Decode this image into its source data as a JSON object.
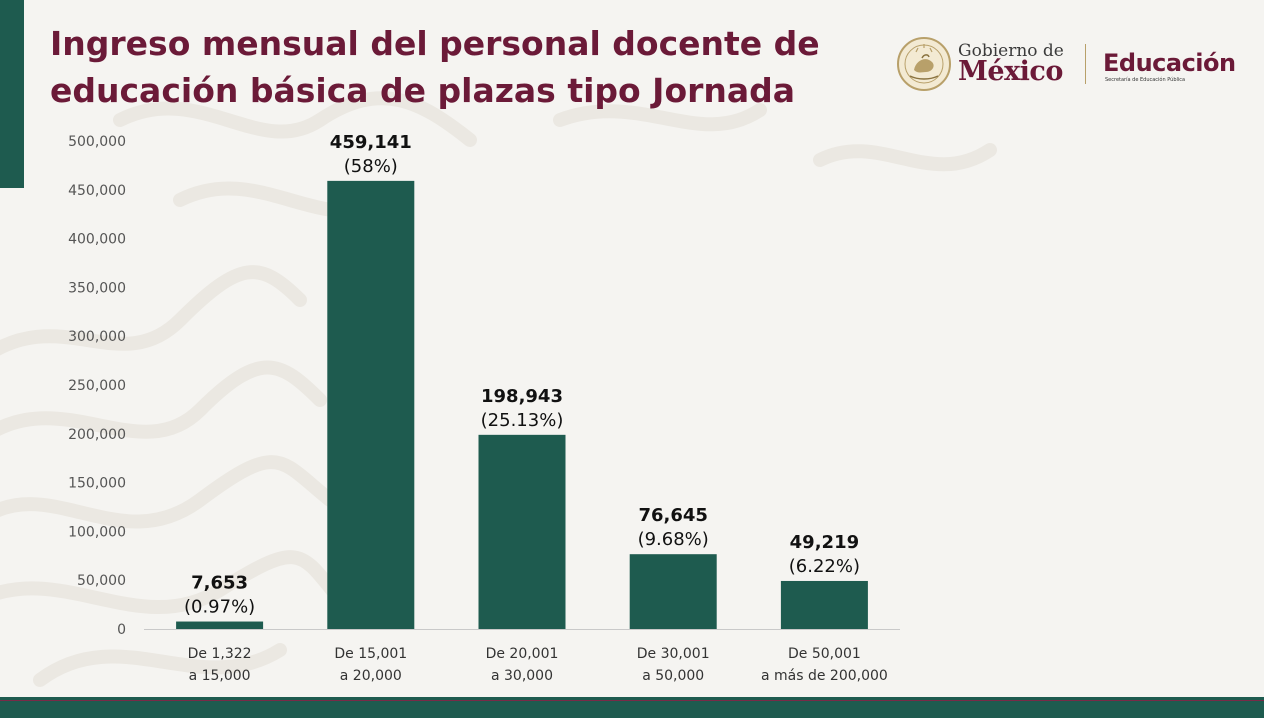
{
  "header": {
    "title_line1": "Ingreso mensual del personal docente de",
    "title_line2": "educación básica de plazas tipo Jornada"
  },
  "logo": {
    "gobierno_small": "Gobierno de",
    "gobierno_big": "México",
    "educacion_big": "Educación",
    "educacion_small": "Secretaría de Educación Pública",
    "seal_text": "ESTADOS UNIDOS MEXICANOS"
  },
  "colors": {
    "bar": "#1e5b4f",
    "title": "#6b1a38",
    "accent_green": "#1e5b4f",
    "gold": "#b8a06a"
  },
  "chart_data": {
    "type": "bar",
    "categories": [
      [
        "De 1,322",
        "a 15,000"
      ],
      [
        "De 15,001",
        "a 20,000"
      ],
      [
        "De 20,001",
        "a 30,000"
      ],
      [
        "De 30,001",
        "a 50,000"
      ],
      [
        "De 50,001",
        "a más de 200,000"
      ]
    ],
    "values": [
      7653,
      459141,
      198943,
      76645,
      49219
    ],
    "value_labels": [
      "7,653",
      "459,141",
      "198,943",
      "76,645",
      "49,219"
    ],
    "percent_labels": [
      "(0.97%)",
      "(58%)",
      "(25.13%)",
      "(9.68%)",
      "(6.22%)"
    ],
    "yticks": [
      0,
      50000,
      100000,
      150000,
      200000,
      250000,
      300000,
      350000,
      400000,
      450000,
      500000
    ],
    "ytick_labels": [
      "0",
      "50,000",
      "100,000",
      "150,000",
      "200,000",
      "250,000",
      "300,000",
      "350,000",
      "400,000",
      "450,000",
      "500,000"
    ],
    "ylim": [
      0,
      500000
    ],
    "grid": false,
    "legend": "none"
  }
}
